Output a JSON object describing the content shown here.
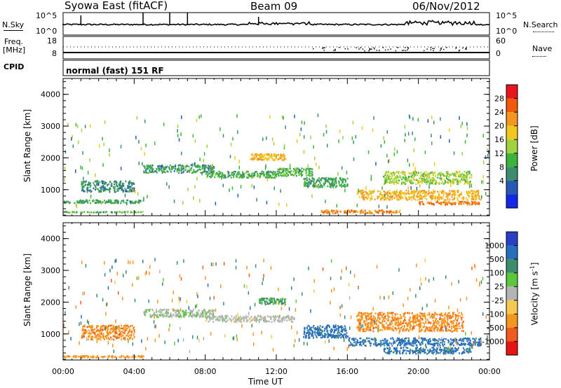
{
  "header": {
    "station": "Syowa East (fitACF)",
    "beam": "Beam 09",
    "date": "06/Nov/2012"
  },
  "top_panels": {
    "nsky_label": "N.Sky",
    "nsky_ticks": [
      "10^5",
      "10^0"
    ],
    "nsearch_label": "N.Search",
    "nsearch_ticks": [
      "10^5",
      "10^0"
    ],
    "freq_label": "Freq.",
    "freq_unit": "[MHz]",
    "freq_ticks": [
      "18",
      "8"
    ],
    "nave_label": "Nave",
    "nave_ticks": [
      "60",
      "0"
    ],
    "cpid_label": "CPID",
    "cpid_text": "normal (fast) 151 RF"
  },
  "power_colorbar": {
    "label": "Power [dB]",
    "ticks": [
      "28",
      "24",
      "20",
      "16",
      "12",
      "8",
      "4"
    ],
    "colors": [
      "#e8141e",
      "#f25a0a",
      "#f5961e",
      "#f0c81e",
      "#9fd23c",
      "#3cb43c",
      "#3c8c6e",
      "#285ab4",
      "#1428e6"
    ]
  },
  "velocity_colorbar": {
    "label": "Velocity [m s-1]",
    "label_main": "Velocity [m s",
    "label_sup": "-1",
    "label_end": "]",
    "ticks": [
      "1000",
      "500",
      "100",
      "25",
      "-25",
      "-100",
      "-500",
      "-1000"
    ],
    "colors": [
      "#2840c8",
      "#286ebe",
      "#3c8c6e",
      "#5ac83c",
      "#b4b4b4",
      "#f5c850",
      "#f5961e",
      "#f05a1e",
      "#e61414"
    ]
  },
  "chart_data": {
    "type": "heatmap",
    "xlabel": "Time UT",
    "ylabel": "Slant Range [km]",
    "x_ticks": [
      "00:00",
      "04:00",
      "08:00",
      "12:00",
      "16:00",
      "20:00",
      "00:00"
    ],
    "y_ticks": [
      "1000",
      "2000",
      "3000",
      "4000"
    ],
    "xlim": [
      0,
      24
    ],
    "ylim": [
      180,
      4500
    ],
    "grid": false,
    "panels": [
      {
        "name": "Power",
        "bands": [
          {
            "t": [
              0.0,
              4.5
            ],
            "r": [
              300,
              330
            ],
            "v": 12
          },
          {
            "t": [
              0.0,
              4.5
            ],
            "r": [
              600,
              700
            ],
            "v": 10
          },
          {
            "t": [
              1.0,
              4.0
            ],
            "r": [
              950,
              1300
            ],
            "v": 8
          },
          {
            "t": [
              4.5,
              8.5
            ],
            "r": [
              1550,
              1800
            ],
            "v": 9
          },
          {
            "t": [
              8.0,
              12.0
            ],
            "r": [
              1400,
              1600
            ],
            "v": 11
          },
          {
            "t": [
              10.5,
              12.5
            ],
            "r": [
              1950,
              2150
            ],
            "v": 22
          },
          {
            "t": [
              12.0,
              14.0
            ],
            "r": [
              1450,
              1700
            ],
            "v": 12
          },
          {
            "t": [
              13.5,
              16.0
            ],
            "r": [
              1100,
              1400
            ],
            "v": 10
          },
          {
            "t": [
              14.5,
              19.0
            ],
            "r": [
              280,
              380
            ],
            "v": 25
          },
          {
            "t": [
              16.5,
              23.5
            ],
            "r": [
              700,
              1000
            ],
            "v": 22
          },
          {
            "t": [
              18.0,
              23.0
            ],
            "r": [
              1200,
              1600
            ],
            "v": 16
          },
          {
            "t": [
              20.0,
              23.5
            ],
            "r": [
              550,
              650
            ],
            "v": 26
          }
        ]
      },
      {
        "name": "Velocity",
        "bands": [
          {
            "t": [
              0.0,
              4.5
            ],
            "r": [
              280,
              340
            ],
            "v": -200
          },
          {
            "t": [
              1.0,
              4.0
            ],
            "r": [
              850,
              1300
            ],
            "v": -400
          },
          {
            "t": [
              4.5,
              8.5
            ],
            "r": [
              1550,
              1800
            ],
            "v": 20
          },
          {
            "t": [
              8.0,
              13.0
            ],
            "r": [
              1400,
              1600
            ],
            "v": 0
          },
          {
            "t": [
              11.0,
              12.5
            ],
            "r": [
              1950,
              2150
            ],
            "v": 120
          },
          {
            "t": [
              13.5,
              16.0
            ],
            "r": [
              900,
              1300
            ],
            "v": 700
          },
          {
            "t": [
              16.0,
              23.5
            ],
            "r": [
              650,
              900
            ],
            "v": 700
          },
          {
            "t": [
              16.5,
              22.5
            ],
            "r": [
              1100,
              1700
            ],
            "v": -400
          },
          {
            "t": [
              18.0,
              23.0
            ],
            "r": [
              400,
              600
            ],
            "v": 600
          }
        ]
      }
    ]
  }
}
